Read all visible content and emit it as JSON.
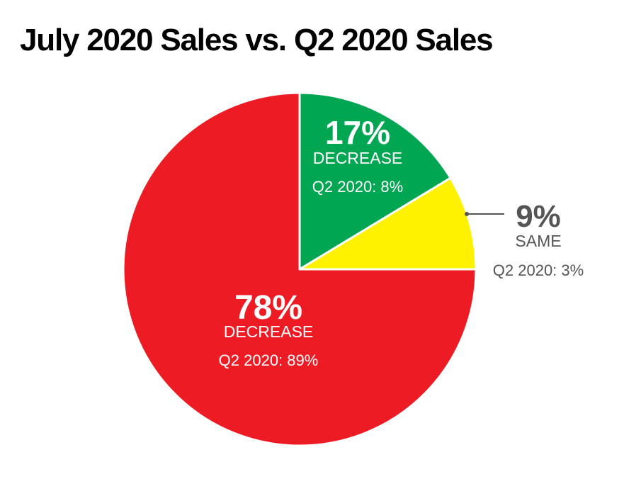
{
  "title": "July 2020 Sales vs. Q2 2020 Sales",
  "colors": {
    "decrease_small": "#00a651",
    "same": "#fff200",
    "decrease_large": "#ed1c24",
    "callout_text": "#555555"
  },
  "chart_data": {
    "type": "pie",
    "title": "July 2020 Sales vs. Q2 2020 Sales",
    "slices": [
      {
        "value": 17,
        "percent_label": "17%",
        "category": "DECREASE",
        "q2_label": "Q2 2020: 8%",
        "color": "#00a651",
        "label_color": "#ffffff"
      },
      {
        "value": 9,
        "percent_label": "9%",
        "category": "SAME",
        "q2_label": "Q2 2020: 3%",
        "color": "#fff200",
        "label_color": "#555555"
      },
      {
        "value": 78,
        "percent_label": "78%",
        "category": "DECREASE",
        "q2_label": "Q2 2020: 89%",
        "color": "#ed1c24",
        "label_color": "#ffffff"
      }
    ]
  }
}
